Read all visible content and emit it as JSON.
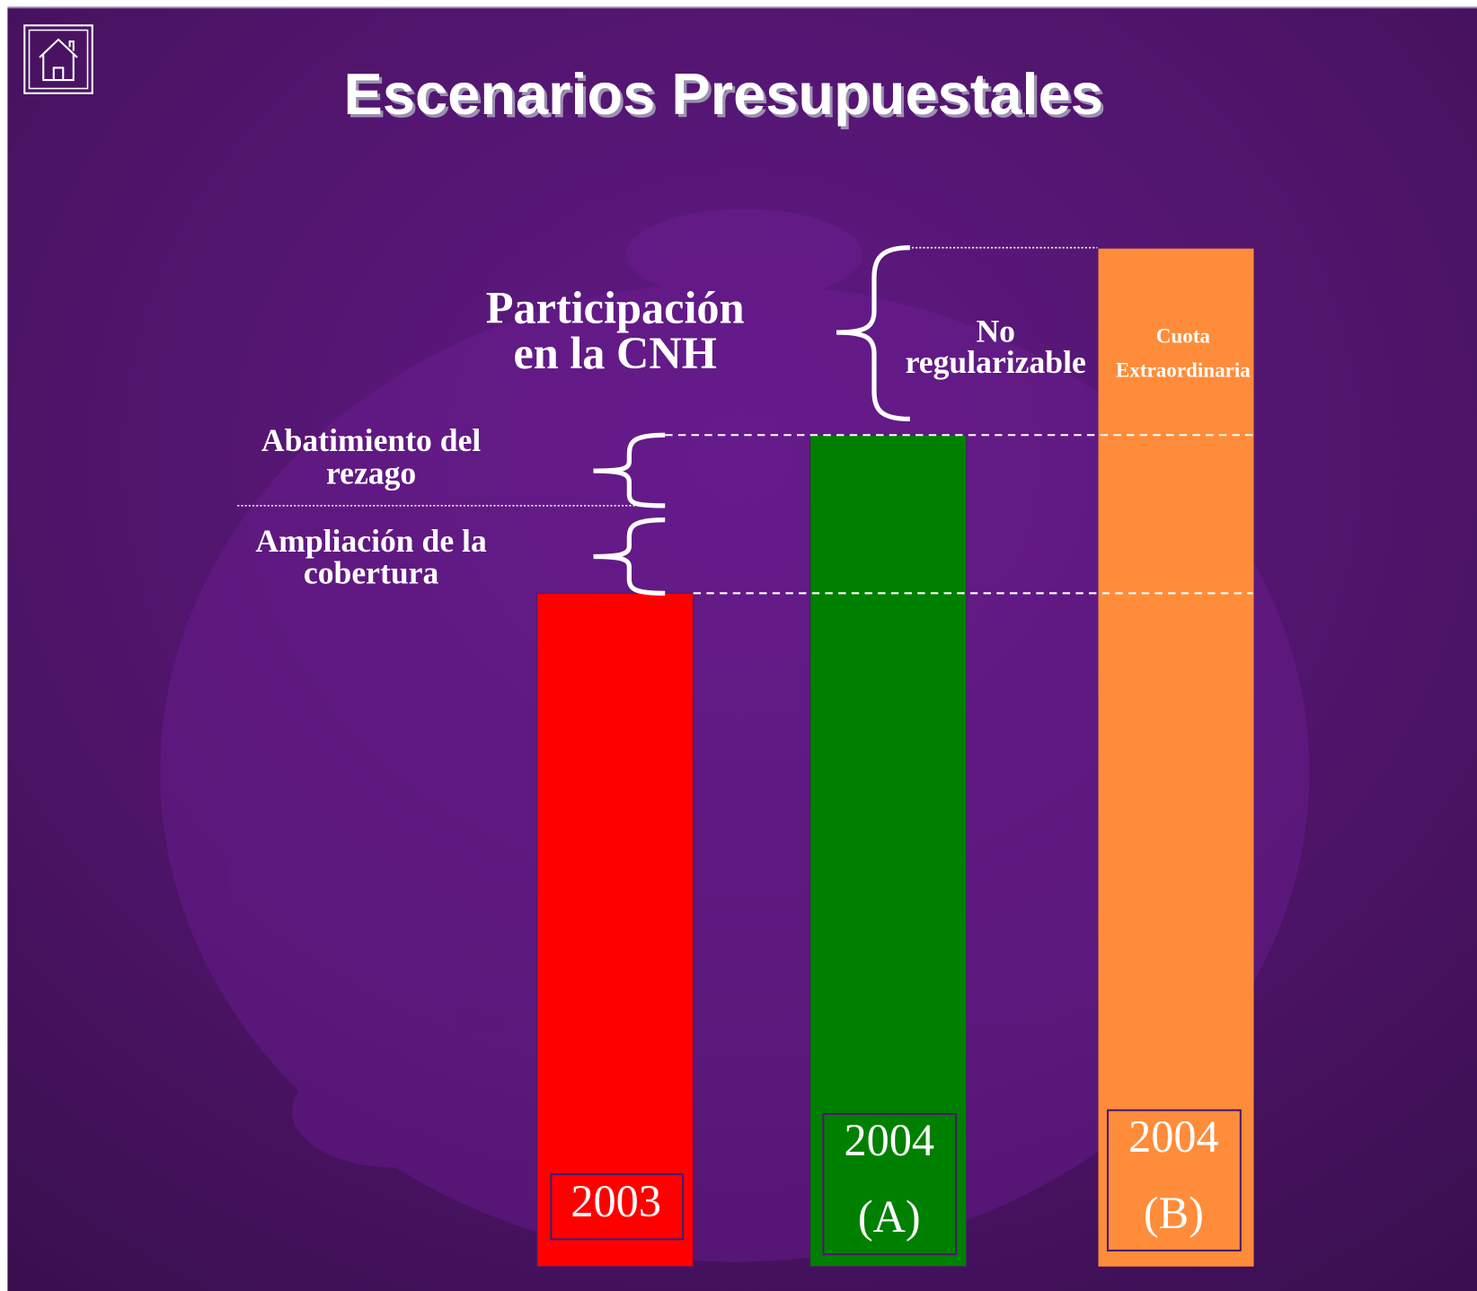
{
  "title": "Escenarios Presupuestales",
  "annotations": {
    "participacion": [
      "Participación",
      "en la CNH"
    ],
    "no_regularizable": [
      "No",
      "regularizable"
    ],
    "cuota": [
      "Cuota",
      "Extraordinaria"
    ],
    "abatimiento": [
      "Abatimiento del",
      "rezago"
    ],
    "ampliacion": [
      "Ampliación de la",
      "cobertura"
    ]
  },
  "bars": [
    {
      "label": [
        "2003"
      ]
    },
    {
      "label": [
        "2004",
        "(A)"
      ]
    },
    {
      "label": [
        "2004",
        "(B)"
      ]
    }
  ]
}
